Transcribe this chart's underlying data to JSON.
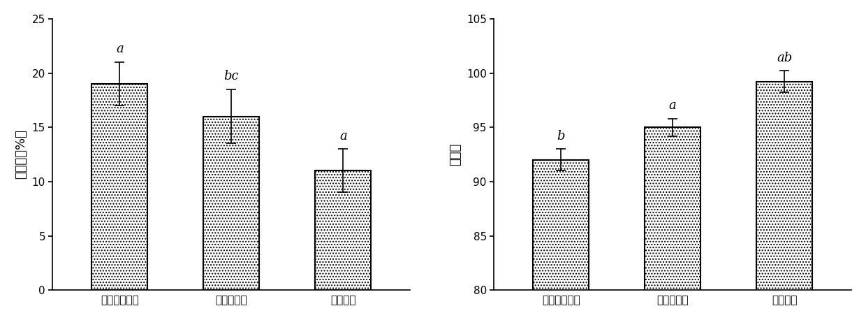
{
  "chart1": {
    "categories": [
      "农民习惯施肥",
      "生物有机肥",
      "生物菌肥"
    ],
    "values": [
      19.0,
      16.0,
      11.0
    ],
    "errors": [
      2.0,
      2.5,
      2.0
    ],
    "labels": [
      "a",
      "bc",
      "a"
    ],
    "ylabel": "死株率（%）",
    "ylim": [
      0,
      25
    ],
    "yticks": [
      0,
      5,
      10,
      15,
      20,
      25
    ]
  },
  "chart2": {
    "categories": [
      "农民习惯施肥",
      "生物有机肥",
      "生物菌肥"
    ],
    "values": [
      92.0,
      95.0,
      99.2
    ],
    "errors": [
      1.0,
      0.8,
      1.0
    ],
    "labels": [
      "b",
      "a",
      "ab"
    ],
    "ylabel": "出苗率",
    "ylim": [
      80,
      105
    ],
    "yticks": [
      80,
      85,
      90,
      95,
      100,
      105
    ]
  },
  "hatch": "....",
  "bar_color": "white",
  "bar_edgecolor": "black",
  "bar_width": 0.5,
  "label_fontsize": 13,
  "tick_fontsize": 11,
  "ylabel_fontsize": 13,
  "xlabel_fontsize": 11
}
